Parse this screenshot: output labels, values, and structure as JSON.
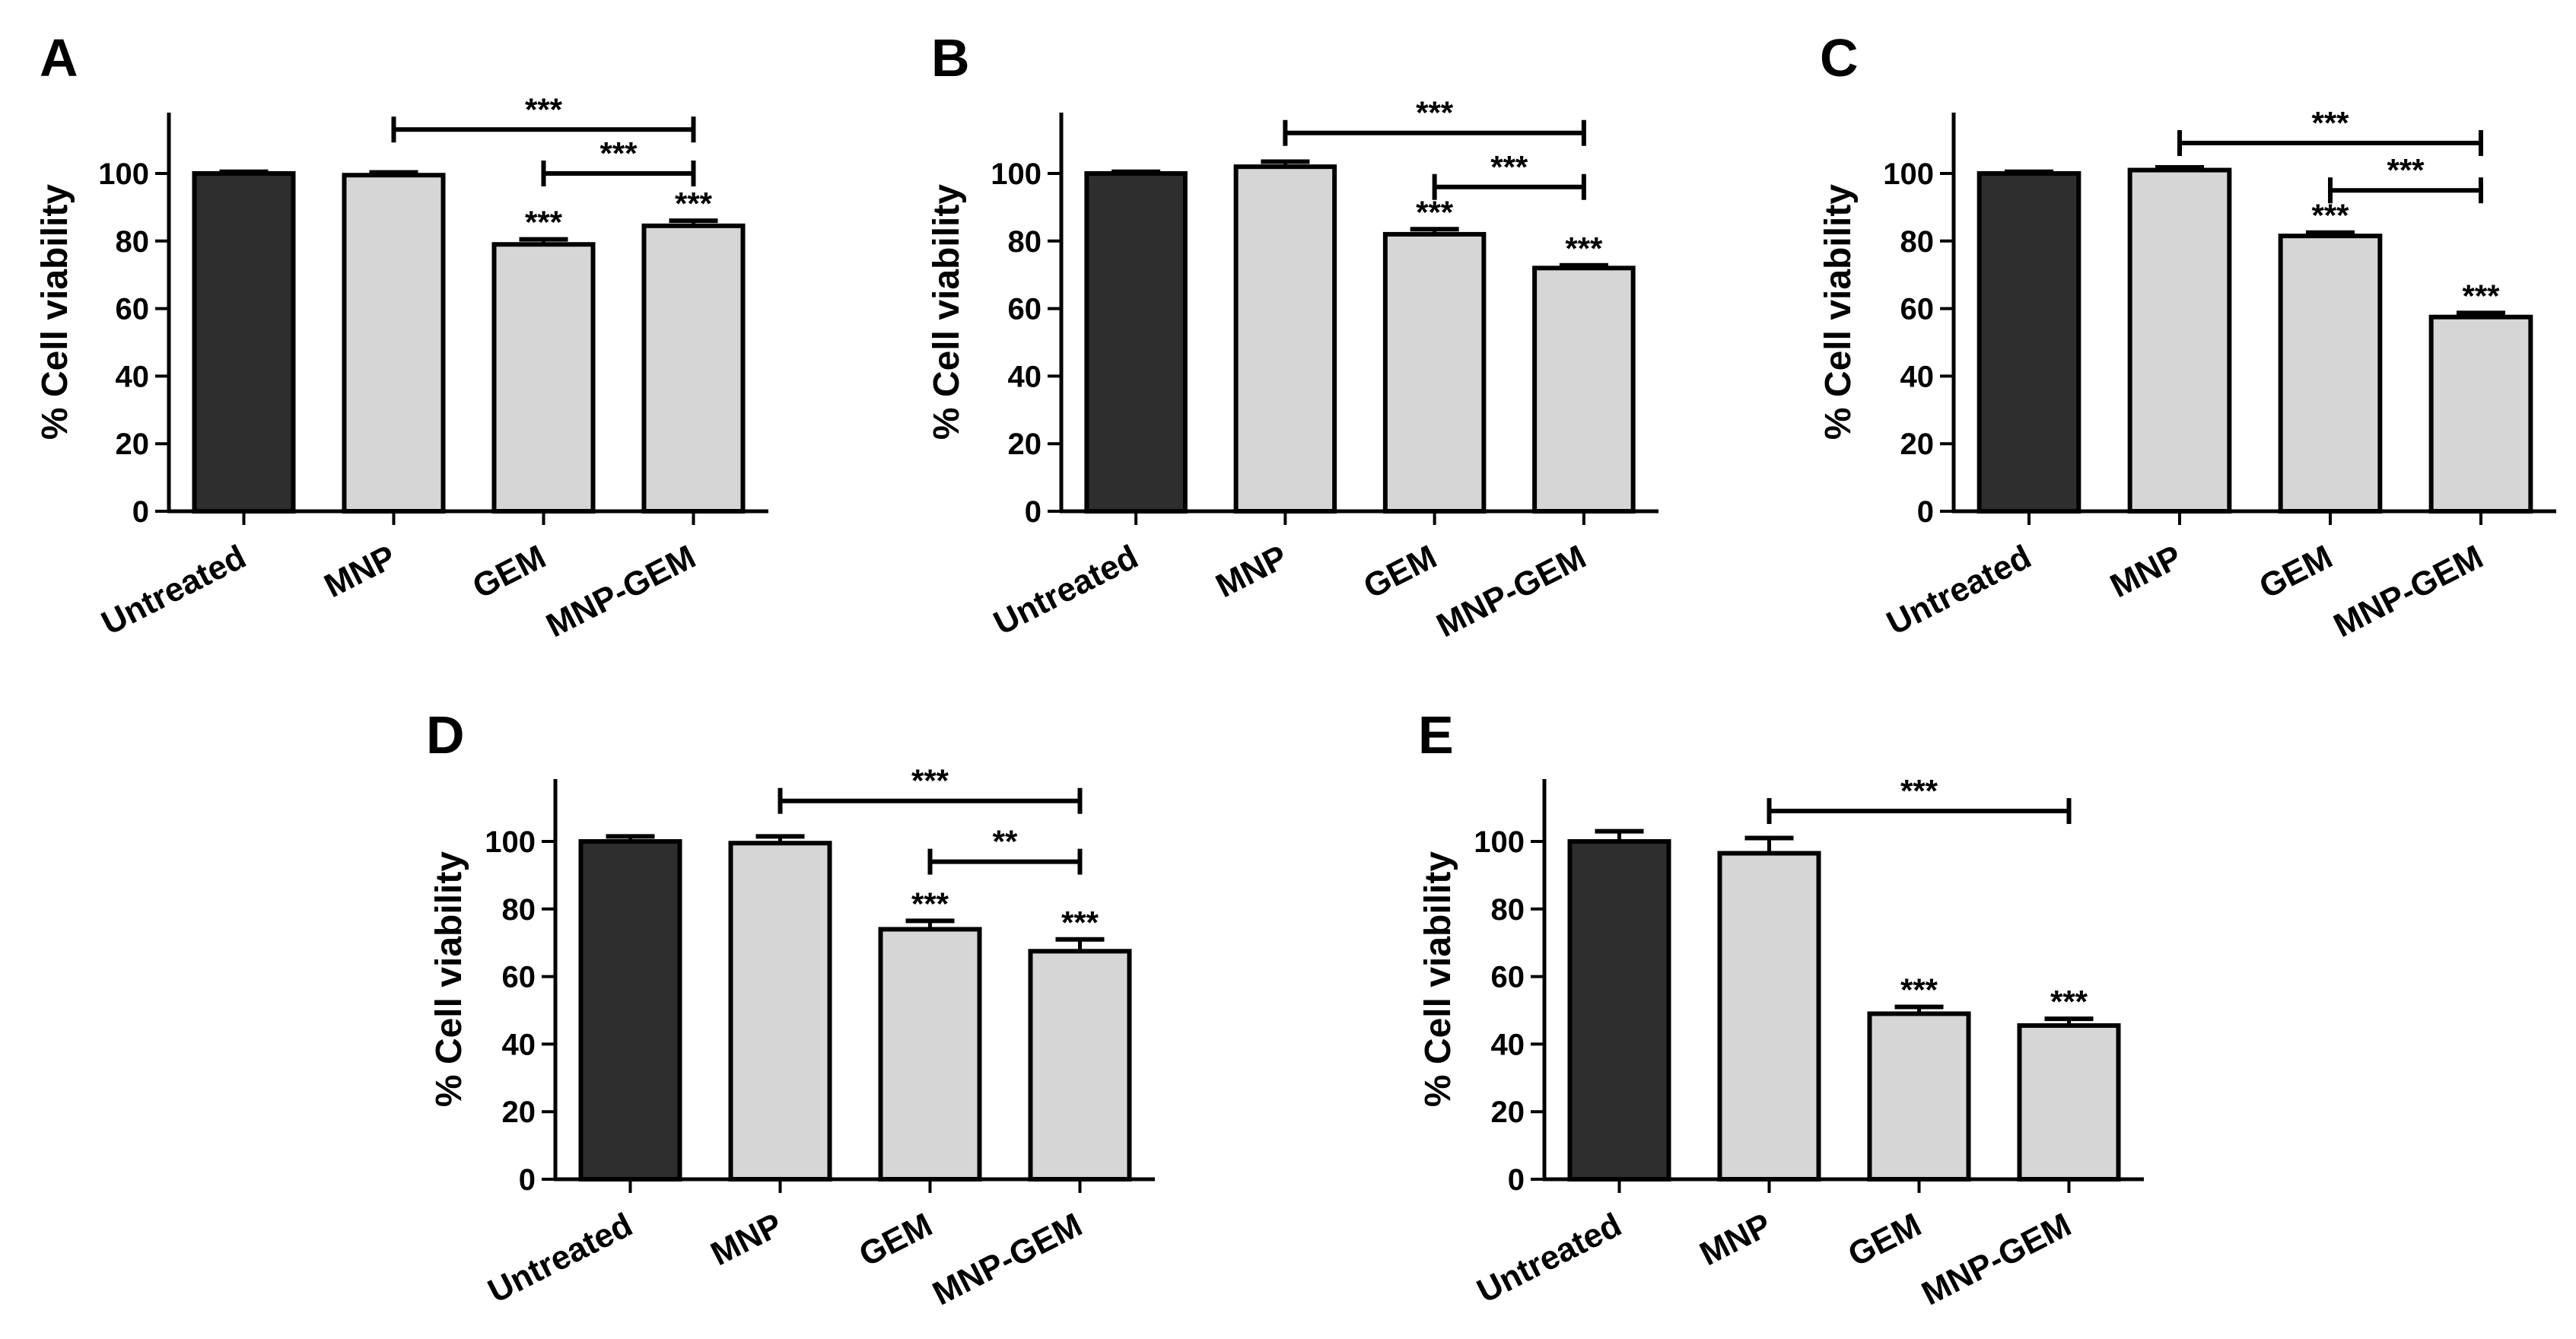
{
  "figure": {
    "colors": {
      "untreated": "#2e2e2e",
      "treated": "#d6d6d6",
      "outline": "#000000"
    }
  },
  "chart_data": [
    {
      "panel": "A",
      "type": "bar",
      "categories": [
        "Untreated",
        "MNP",
        "GEM",
        "MNP-GEM"
      ],
      "values": [
        100,
        99.5,
        79,
        84.5
      ],
      "errors": [
        0.5,
        0.8,
        1.5,
        1.5
      ],
      "bar_significance": [
        "",
        "",
        "***",
        "***"
      ],
      "comparisons": [
        {
          "from": 1,
          "to": 3,
          "label": "***",
          "y": 113
        },
        {
          "from": 2,
          "to": 3,
          "label": "***",
          "y": 100
        }
      ],
      "ylabel": "% Cell viability",
      "ylim": [
        0,
        120
      ],
      "yticks": [
        0,
        20,
        40,
        60,
        80,
        100
      ]
    },
    {
      "panel": "B",
      "type": "bar",
      "categories": [
        "Untreated",
        "MNP",
        "GEM",
        "MNP-GEM"
      ],
      "values": [
        100,
        102,
        82,
        72
      ],
      "errors": [
        0.5,
        1.5,
        1.5,
        0.8
      ],
      "bar_significance": [
        "",
        "",
        "***",
        "***"
      ],
      "comparisons": [
        {
          "from": 1,
          "to": 3,
          "label": "***",
          "y": 112
        },
        {
          "from": 2,
          "to": 3,
          "label": "***",
          "y": 96
        }
      ],
      "ylabel": "% Cell viability",
      "ylim": [
        0,
        120
      ],
      "yticks": [
        0,
        20,
        40,
        60,
        80,
        100
      ]
    },
    {
      "panel": "C",
      "type": "bar",
      "categories": [
        "Untreated",
        "MNP",
        "GEM",
        "MNP-GEM"
      ],
      "values": [
        100,
        101,
        81.5,
        57.5
      ],
      "errors": [
        0.5,
        0.8,
        1,
        1.2
      ],
      "bar_significance": [
        "",
        "",
        "***",
        "***"
      ],
      "comparisons": [
        {
          "from": 1,
          "to": 3,
          "label": "***",
          "y": 109
        },
        {
          "from": 2,
          "to": 3,
          "label": "***",
          "y": 95
        }
      ],
      "ylabel": "% Cell viability",
      "ylim": [
        0,
        120
      ],
      "yticks": [
        0,
        20,
        40,
        60,
        80,
        100
      ]
    },
    {
      "panel": "D",
      "type": "bar",
      "categories": [
        "Untreated",
        "MNP",
        "GEM",
        "MNP-GEM"
      ],
      "values": [
        100,
        99.5,
        74,
        67.5
      ],
      "errors": [
        1.5,
        2,
        2.5,
        3.5
      ],
      "bar_significance": [
        "",
        "",
        "***",
        "***"
      ],
      "comparisons": [
        {
          "from": 1,
          "to": 3,
          "label": "***",
          "y": 112
        },
        {
          "from": 2,
          "to": 3,
          "label": "**",
          "y": 94
        }
      ],
      "ylabel": "% Cell viability",
      "ylim": [
        0,
        120
      ],
      "yticks": [
        0,
        20,
        40,
        60,
        80,
        100
      ]
    },
    {
      "panel": "E",
      "type": "bar",
      "categories": [
        "Untreated",
        "MNP",
        "GEM",
        "MNP-GEM"
      ],
      "values": [
        100,
        96.5,
        49,
        45.5
      ],
      "errors": [
        3,
        4.5,
        2,
        2
      ],
      "bar_significance": [
        "",
        "",
        "***",
        "***"
      ],
      "comparisons": [
        {
          "from": 1,
          "to": 3,
          "label": "***",
          "y": 109
        }
      ],
      "ylabel": "% Cell viability",
      "ylim": [
        0,
        120
      ],
      "yticks": [
        0,
        20,
        40,
        60,
        80,
        100
      ]
    }
  ]
}
